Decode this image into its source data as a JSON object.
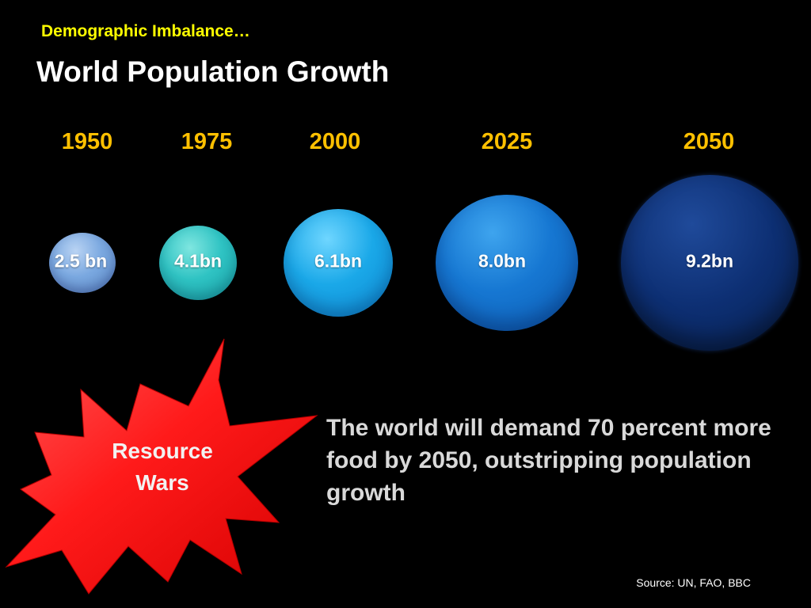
{
  "slide": {
    "subtitle": "Demographic Imbalance…",
    "title": "World Population Growth"
  },
  "timeline": [
    {
      "year": "1950",
      "population": "2.5 bn",
      "color": "#7aa8e0"
    },
    {
      "year": "1975",
      "population": "4.1bn",
      "color": "#2fc3c3"
    },
    {
      "year": "2000",
      "population": "6.1bn",
      "color": "#1aa8e8"
    },
    {
      "year": "2025",
      "population": "8.0bn",
      "color": "#1677d2"
    },
    {
      "year": "2050",
      "population": "9.2bn",
      "color": "#0d2f73"
    }
  ],
  "burst": {
    "line1": "Resource",
    "line2": "Wars",
    "color": "#ff1a1a"
  },
  "note": "The world will demand 70 percent more food by 2050, outstripping population growth",
  "source": "Source: UN, FAO, BBC",
  "colors": {
    "background": "#000000",
    "subtitle": "#ffff00",
    "year": "#ffc000",
    "note": "#d9d9d9"
  }
}
